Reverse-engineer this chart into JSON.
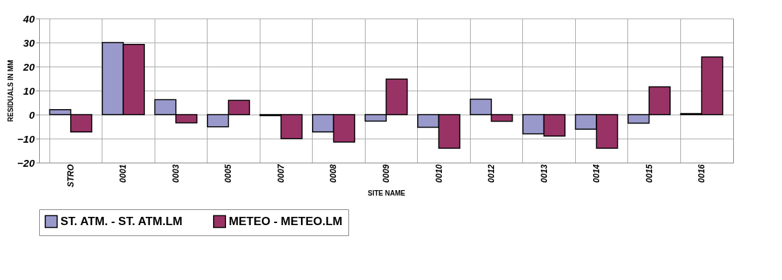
{
  "chart_data": {
    "type": "bar",
    "xlabel": "SITE NAME",
    "ylabel": "RESIDUALS IN MM",
    "categories": [
      "STRO",
      "0001",
      "0003",
      "0005",
      "0007",
      "0008",
      "0009",
      "0010",
      "0012",
      "0013",
      "0014",
      "0015",
      "0016"
    ],
    "series": [
      {
        "name": "ST. ATM. - ST. ATM.LM",
        "color": "#9999cc",
        "values": [
          2.1,
          30,
          6.2,
          -5.1,
          -0.4,
          -7.2,
          -2.7,
          -5.3,
          6.4,
          -8,
          -6.1,
          -3.6,
          0.4
        ]
      },
      {
        "name": "METEO - METEO.LM",
        "color": "#993366",
        "values": [
          -7.2,
          29.2,
          -3.4,
          5.9,
          -10,
          -11.4,
          14.8,
          -14,
          -2.8,
          -8.9,
          -14,
          11.6,
          24
        ]
      }
    ],
    "ylim": [
      -20,
      40
    ],
    "yticks": [
      -20,
      -10,
      0,
      10,
      20,
      30,
      40
    ],
    "grid": true,
    "legend": "bottom"
  }
}
